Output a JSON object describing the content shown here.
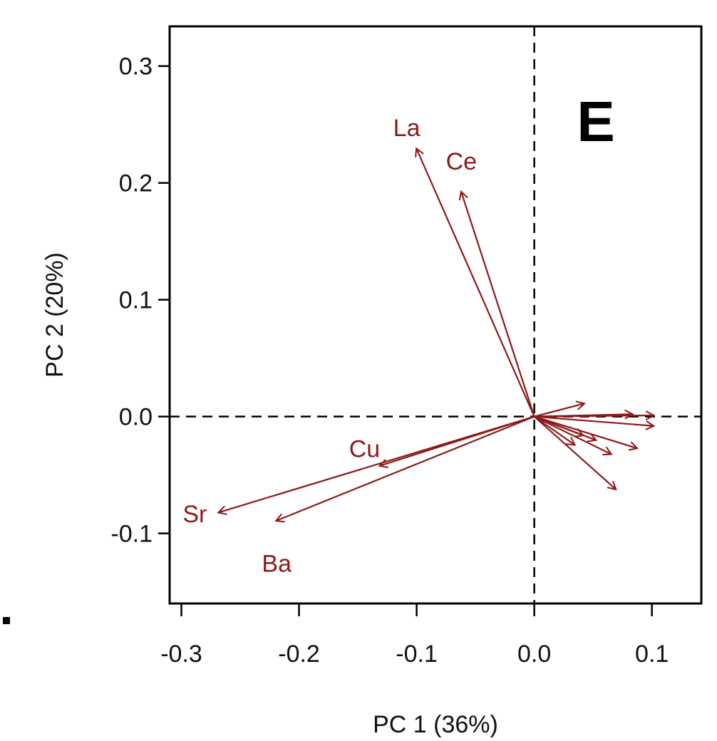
{
  "chart_data": {
    "type": "scatter",
    "title": "",
    "panel_label": "E",
    "xlabel": "PC 1 (36%)",
    "ylabel": "PC 2 (20%)",
    "xlim": [
      -0.31,
      0.142
    ],
    "ylim": [
      -0.16,
      0.334
    ],
    "xticks": [
      -0.3,
      -0.2,
      -0.1,
      0.0,
      0.1
    ],
    "xtick_labels": [
      "-0.3",
      "-0.2",
      "-0.1",
      "0.0",
      "0.1"
    ],
    "yticks": [
      -0.1,
      0.0,
      0.1,
      0.2,
      0.3
    ],
    "ytick_labels": [
      "-0.1",
      "0.0",
      "0.1",
      "0.2",
      "0.3"
    ],
    "grid": false,
    "reference_lines": {
      "x": 0.0,
      "y": 0.0,
      "style": "dashed"
    },
    "vector_color": "#8b1a1a",
    "vectors": [
      {
        "label": "La",
        "x": -0.1,
        "y": 0.229
      },
      {
        "label": "Ce",
        "x": -0.062,
        "y": 0.192
      },
      {
        "label": "Cu",
        "x": -0.131,
        "y": -0.042
      },
      {
        "label": "Sr",
        "x": -0.268,
        "y": -0.082
      },
      {
        "label": "Ba",
        "x": -0.219,
        "y": -0.089
      },
      {
        "label": "",
        "x": 0.042,
        "y": 0.011
      },
      {
        "label": "",
        "x": 0.083,
        "y": 0.002
      },
      {
        "label": "",
        "x": 0.101,
        "y": 0.001
      },
      {
        "label": "",
        "x": 0.101,
        "y": -0.008
      },
      {
        "label": "",
        "x": 0.087,
        "y": -0.027
      },
      {
        "label": "",
        "x": 0.065,
        "y": -0.032
      },
      {
        "label": "",
        "x": 0.052,
        "y": -0.02
      },
      {
        "label": "",
        "x": 0.041,
        "y": -0.016
      },
      {
        "label": "",
        "x": 0.034,
        "y": -0.024
      },
      {
        "label": "",
        "x": 0.069,
        "y": -0.062
      }
    ]
  }
}
